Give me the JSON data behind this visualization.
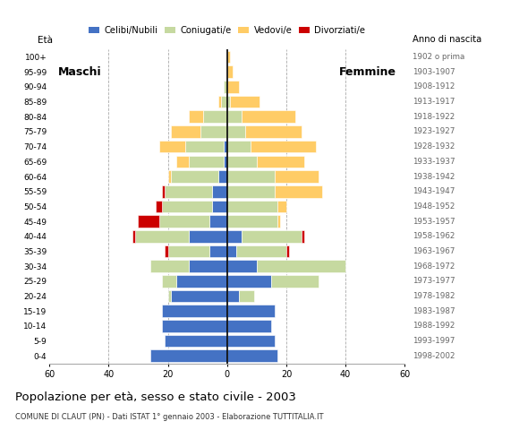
{
  "age_groups": [
    "0-4",
    "5-9",
    "10-14",
    "15-19",
    "20-24",
    "25-29",
    "30-34",
    "35-39",
    "40-44",
    "45-49",
    "50-54",
    "55-59",
    "60-64",
    "65-69",
    "70-74",
    "75-79",
    "80-84",
    "85-89",
    "90-94",
    "95-99",
    "100+"
  ],
  "birth_years": [
    "1998-2002",
    "1993-1997",
    "1988-1992",
    "1983-1987",
    "1978-1982",
    "1973-1977",
    "1968-1972",
    "1963-1967",
    "1958-1962",
    "1953-1957",
    "1948-1952",
    "1943-1947",
    "1938-1942",
    "1933-1937",
    "1928-1932",
    "1923-1927",
    "1918-1922",
    "1913-1917",
    "1908-1912",
    "1903-1907",
    "1902 o prima"
  ],
  "males": {
    "celibe": [
      26,
      21,
      22,
      22,
      19,
      17,
      13,
      6,
      13,
      6,
      5,
      5,
      3,
      1,
      1,
      0,
      0,
      0,
      0,
      0,
      0
    ],
    "coniugato": [
      0,
      0,
      0,
      0,
      1,
      5,
      13,
      14,
      18,
      17,
      17,
      16,
      16,
      12,
      13,
      9,
      8,
      2,
      1,
      0,
      0
    ],
    "vedovo": [
      0,
      0,
      0,
      0,
      0,
      0,
      0,
      0,
      0,
      0,
      0,
      0,
      1,
      4,
      9,
      10,
      5,
      1,
      0,
      0,
      0
    ],
    "divorziato": [
      0,
      0,
      0,
      0,
      0,
      0,
      0,
      1,
      1,
      7,
      2,
      1,
      0,
      0,
      0,
      0,
      0,
      0,
      0,
      0,
      0
    ]
  },
  "females": {
    "celibe": [
      17,
      16,
      15,
      16,
      4,
      15,
      10,
      3,
      5,
      0,
      0,
      0,
      0,
      0,
      0,
      0,
      0,
      0,
      0,
      0,
      0
    ],
    "coniugato": [
      0,
      0,
      0,
      0,
      5,
      16,
      30,
      17,
      20,
      17,
      17,
      16,
      16,
      10,
      8,
      6,
      5,
      1,
      0,
      0,
      0
    ],
    "vedovo": [
      0,
      0,
      0,
      0,
      0,
      0,
      0,
      0,
      0,
      1,
      3,
      16,
      15,
      16,
      22,
      19,
      18,
      10,
      4,
      2,
      1
    ],
    "divorziato": [
      0,
      0,
      0,
      0,
      0,
      0,
      0,
      1,
      1,
      0,
      0,
      0,
      0,
      0,
      0,
      0,
      0,
      0,
      0,
      0,
      0
    ]
  },
  "colors": {
    "celibe": "#4472C4",
    "coniugato": "#C6D9A0",
    "vedovo": "#FFCC66",
    "divorziato": "#CC0000"
  },
  "legend_labels": [
    "Celibi/Nubili",
    "Coniugati/e",
    "Vedovi/e",
    "Divorziati/e"
  ],
  "title": "Popolazione per età, sesso e stato civile - 2003",
  "subtitle": "COMUNE DI CLAUT (PN) - Dati ISTAT 1° gennaio 2003 - Elaborazione TUTTITALIA.IT",
  "label_maschi": "Maschi",
  "label_femmine": "Femmine",
  "label_eta": "Età",
  "label_anno": "Anno di nascita",
  "xlim": 60,
  "bg_color": "#FFFFFF",
  "grid_color": "#AAAAAA"
}
